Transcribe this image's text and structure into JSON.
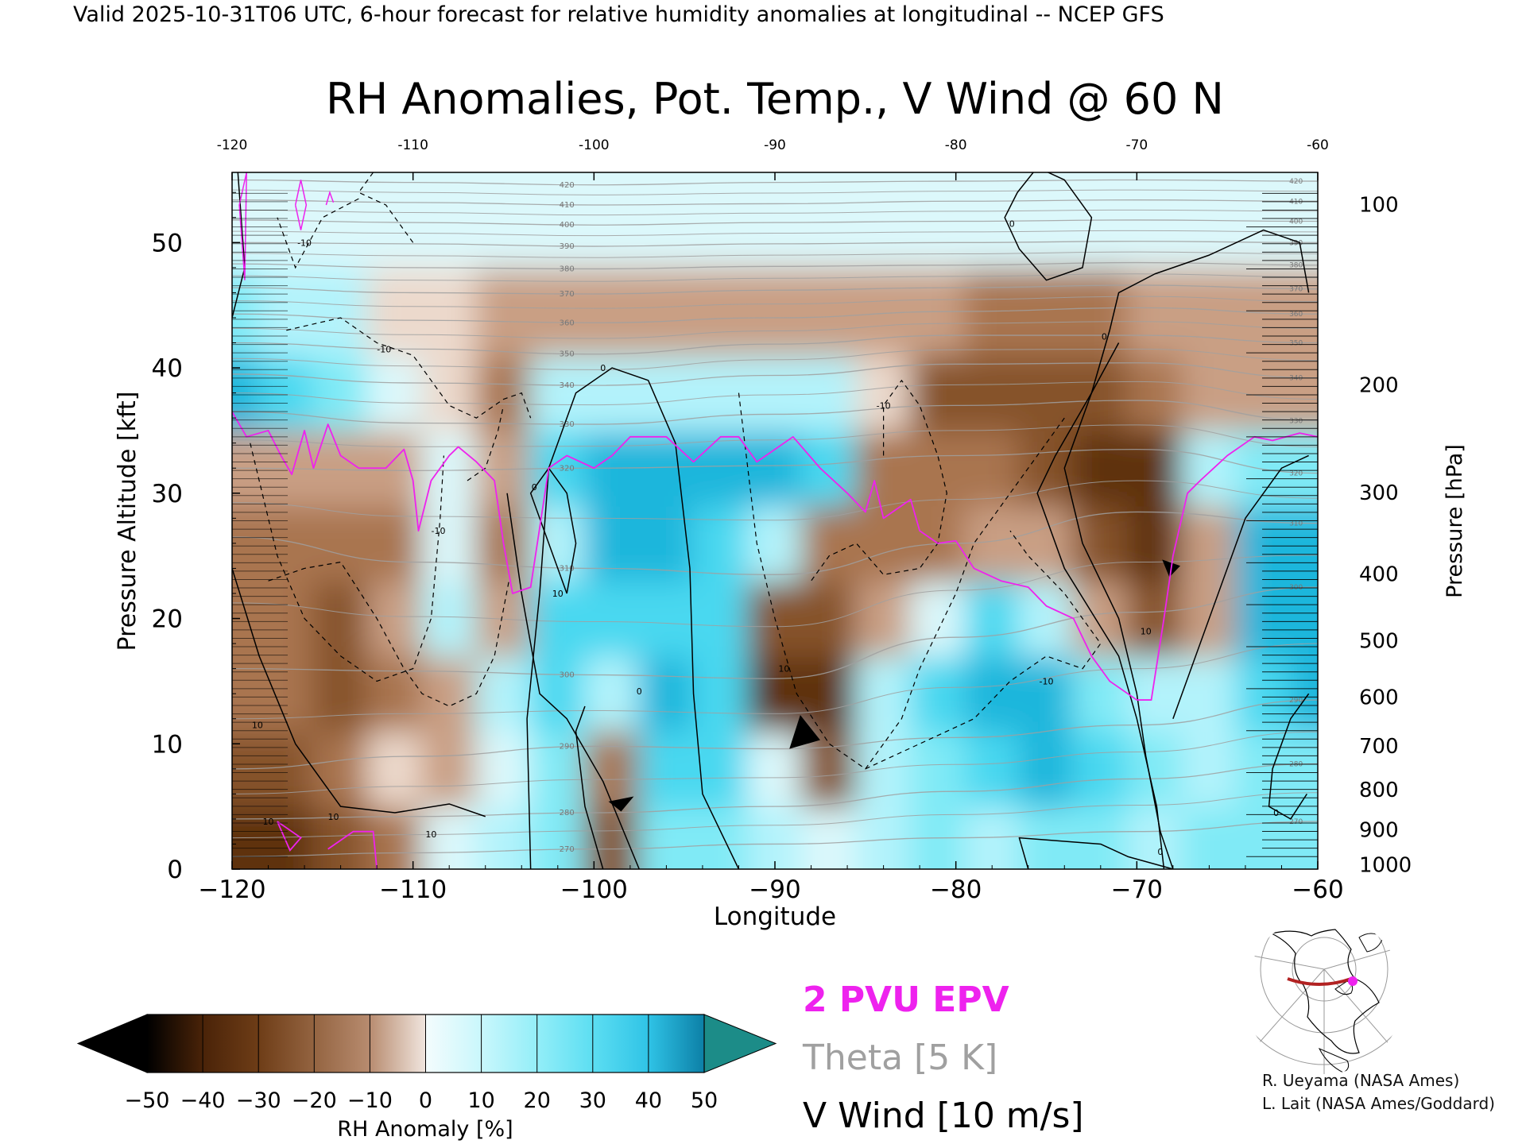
{
  "header": "Valid 2025-10-31T06 UTC, 6-hour forecast for relative humidity anomalies at longitudinal -- NCEP GFS",
  "chart_data": {
    "type": "heatmap",
    "title": "RH Anomalies, Pot. Temp., V Wind @ 60 N",
    "xlabel": "Longitude",
    "ylabel_left": "Pressure Altitude [kft]",
    "ylabel_right": "Pressure [hPa]",
    "xlim": [
      -120,
      -60
    ],
    "ylim": [
      0,
      55.6
    ],
    "x_ticks": [
      -120,
      -110,
      -100,
      -90,
      -80,
      -70,
      -60
    ],
    "x_tick_labels_bottom": [
      "−120",
      "−110",
      "−100",
      "−90",
      "−80",
      "−70",
      "−60"
    ],
    "x_tick_labels_top": [
      "-120",
      "-110",
      "-100",
      "-90",
      "-80",
      "-70",
      "-60"
    ],
    "y_ticks_kft": [
      0,
      10,
      20,
      30,
      40,
      50
    ],
    "pressure_ticks": [
      {
        "label": "100",
        "kft": 53.1
      },
      {
        "label": "200",
        "kft": 38.7
      },
      {
        "label": "300",
        "kft": 30.1
      },
      {
        "label": "400",
        "kft": 23.6
      },
      {
        "label": "500",
        "kft": 18.3
      },
      {
        "label": "600",
        "kft": 13.8
      },
      {
        "label": "700",
        "kft": 9.9
      },
      {
        "label": "800",
        "kft": 6.4
      },
      {
        "label": "900",
        "kft": 3.2
      },
      {
        "label": "1000",
        "kft": 0.4
      }
    ],
    "rh_anomaly_field": {
      "description_units": "percent",
      "x": [
        -120,
        -117,
        -114,
        -111,
        -108,
        -105,
        -102,
        -99,
        -96,
        -93,
        -90,
        -87,
        -84,
        -81,
        -78,
        -75,
        -72,
        -69,
        -66,
        -63,
        -60
      ],
      "y_kft": [
        2,
        8,
        14,
        20,
        26,
        32,
        38,
        44,
        52
      ],
      "values": [
        [
          -40,
          -45,
          -30,
          -20,
          0,
          10,
          20,
          -30,
          20,
          20,
          10,
          0,
          10,
          20,
          15,
          20,
          20,
          15,
          20,
          20,
          20
        ],
        [
          -35,
          -30,
          -20,
          -5,
          -10,
          5,
          20,
          -25,
          30,
          35,
          0,
          -30,
          10,
          20,
          30,
          40,
          35,
          20,
          10,
          20,
          25
        ],
        [
          -25,
          -20,
          -30,
          -20,
          -10,
          10,
          30,
          10,
          40,
          30,
          -40,
          -40,
          10,
          30,
          40,
          45,
          20,
          10,
          15,
          30,
          40
        ],
        [
          -20,
          -20,
          -30,
          -10,
          10,
          -15,
          35,
          30,
          35,
          35,
          -35,
          -35,
          -10,
          5,
          30,
          15,
          -10,
          -30,
          -15,
          40,
          45
        ],
        [
          -20,
          -25,
          -20,
          -20,
          5,
          -20,
          10,
          40,
          40,
          35,
          10,
          -20,
          -20,
          -20,
          -15,
          -15,
          -30,
          -45,
          -15,
          40,
          45
        ],
        [
          -15,
          -10,
          -15,
          -10,
          0,
          -15,
          30,
          40,
          45,
          45,
          40,
          35,
          -25,
          -25,
          -25,
          -30,
          -40,
          -40,
          10,
          20,
          25
        ],
        [
          40,
          30,
          20,
          5,
          -5,
          -20,
          10,
          15,
          15,
          10,
          15,
          10,
          -5,
          -35,
          -35,
          -35,
          -30,
          -25,
          -15,
          -10,
          -10
        ],
        [
          20,
          15,
          10,
          -5,
          -5,
          -10,
          -10,
          -10,
          -10,
          -10,
          -10,
          -10,
          -10,
          -15,
          -20,
          -25,
          -20,
          -15,
          -10,
          -10,
          -10
        ],
        [
          5,
          5,
          3,
          2,
          2,
          2,
          2,
          2,
          2,
          2,
          2,
          2,
          2,
          2,
          2,
          2,
          2,
          2,
          2,
          2,
          2
        ]
      ]
    },
    "theta_contour_labels": [
      "420",
      "410",
      "400",
      "390",
      "380",
      "370",
      "360",
      "350",
      "340",
      "330",
      "320",
      "310",
      "300",
      "290",
      "280",
      "270"
    ],
    "vwind_contour_labels": [
      "0",
      "10",
      "-10"
    ],
    "colorbar": {
      "label": "RH Anomaly [%]",
      "tick_labels": [
        "−50",
        "−40",
        "−30",
        "−20",
        "−10",
        "0",
        "10",
        "20",
        "30",
        "40",
        "50"
      ],
      "colors": [
        "#000000",
        "#3a1a06",
        "#5e3210",
        "#86522a",
        "#a97450",
        "#c99f84",
        "#ecd9cc",
        "#dcf8fb",
        "#b3f3fb",
        "#80eaf6",
        "#4ad8f0",
        "#1fb6dc",
        "#0e8fb5",
        "#1c8c88"
      ]
    },
    "legend": {
      "epv": "2 PVU EPV",
      "theta": "Theta [5 K]",
      "vwind": "V Wind [10 m/s]"
    },
    "colors": {
      "epv": "#ee22ee",
      "theta": "#a0a0a0",
      "vwind": "#000000"
    }
  },
  "inset_map": {
    "name": "locator map"
  },
  "credits": [
    "R. Ueyama (NASA Ames)",
    "L. Lait (NASA Ames/Goddard)"
  ]
}
